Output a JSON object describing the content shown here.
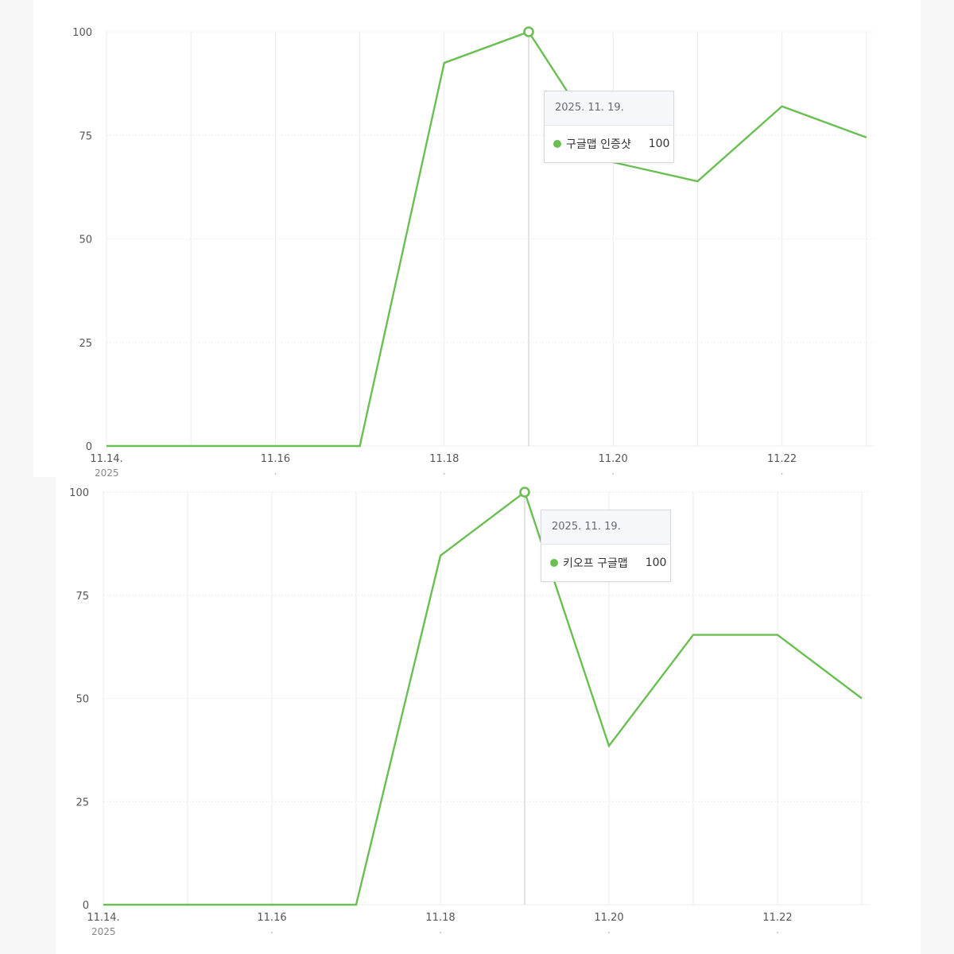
{
  "colors": {
    "series": "#6abf52",
    "grid": "#ececec",
    "cursor": "#c8c8c8",
    "axis_text": "#555555"
  },
  "chart_data": [
    {
      "type": "line",
      "title": "",
      "x_ticks": [
        "11.14.",
        "11.16",
        "11.18",
        "11.20",
        "11.22"
      ],
      "year_label": "2025",
      "y_ticks": [
        "0",
        "25",
        "50",
        "75",
        "100"
      ],
      "ylim": [
        0,
        100
      ],
      "x": [
        "11.14",
        "11.15",
        "11.16",
        "11.17",
        "11.18",
        "11.19",
        "11.20",
        "11.21",
        "11.22",
        "11.23"
      ],
      "series": [
        {
          "name": "구글맵 인증샷",
          "values": [
            0,
            0,
            0,
            0,
            92.5,
            100,
            68.5,
            63.9,
            82,
            74.5
          ]
        }
      ],
      "tooltip": {
        "date": "2025. 11. 19.",
        "series_name": "구글맵 인증샷",
        "value": "100",
        "index": 5
      },
      "grid": true
    },
    {
      "type": "line",
      "title": "",
      "x_ticks": [
        "11.14.",
        "11.16",
        "11.18",
        "11.20",
        "11.22"
      ],
      "year_label": "2025",
      "y_ticks": [
        "0",
        "25",
        "50",
        "75",
        "100"
      ],
      "ylim": [
        0,
        100
      ],
      "x": [
        "11.14",
        "11.15",
        "11.16",
        "11.17",
        "11.18",
        "11.19",
        "11.20",
        "11.21",
        "11.22",
        "11.23"
      ],
      "series": [
        {
          "name": "키오프 구글맵",
          "values": [
            0,
            0,
            0,
            0,
            84.6,
            100,
            38.5,
            65.4,
            65.4,
            50
          ]
        }
      ],
      "tooltip": {
        "date": "2025. 11. 19.",
        "series_name": "키오프 구글맵",
        "value": "100",
        "index": 5
      },
      "grid": true
    }
  ]
}
